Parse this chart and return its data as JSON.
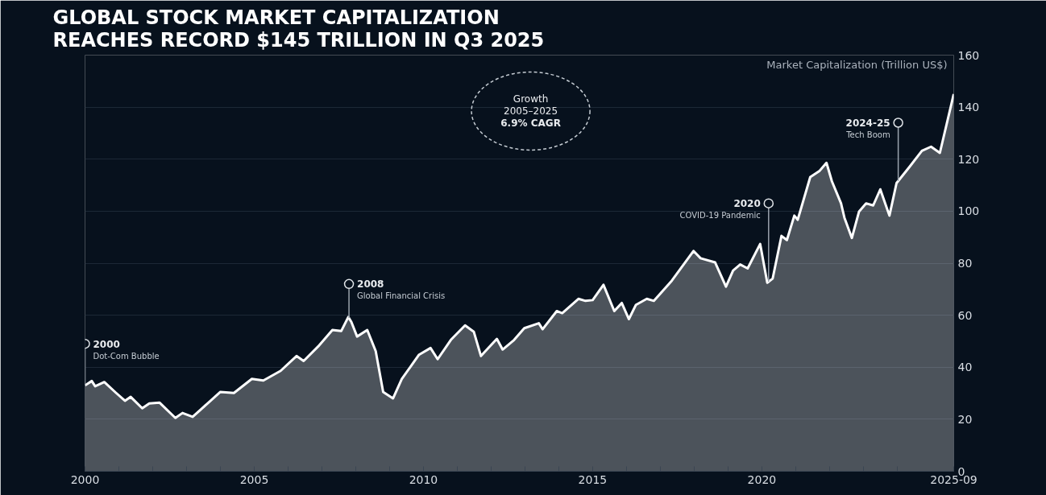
{
  "chart_data": {
    "type": "area",
    "title": "GLOBAL STOCK MARKET CAPITALIZATION\nREACHES RECORD $145 TRILLION IN Q3 2025",
    "ylabel": "Market Capitalization (Trillion US$)",
    "x": [
      2000.0,
      2000.2,
      2000.3,
      2000.57,
      2000.92,
      2001.18,
      2001.35,
      2001.69,
      2001.9,
      2002.2,
      2002.67,
      2002.88,
      2003.18,
      2003.4,
      2004.0,
      2004.4,
      2004.93,
      2005.27,
      2005.78,
      2006.25,
      2006.46,
      2006.89,
      2007.31,
      2007.57,
      2007.78,
      2007.87,
      2008.04,
      2008.34,
      2008.59,
      2008.81,
      2009.1,
      2009.36,
      2009.87,
      2010.21,
      2010.42,
      2010.81,
      2011.23,
      2011.49,
      2011.7,
      2011.92,
      2012.17,
      2012.34,
      2012.68,
      2012.98,
      2013.41,
      2013.52,
      2013.94,
      2014.1,
      2014.58,
      2014.79,
      2015.0,
      2015.32,
      2015.64,
      2015.86,
      2016.07,
      2016.28,
      2016.6,
      2016.81,
      2017.34,
      2017.98,
      2018.19,
      2018.62,
      2018.94,
      2019.15,
      2019.36,
      2019.58,
      2019.95,
      2020.16,
      2020.32,
      2020.58,
      2020.74,
      2020.96,
      2021.06,
      2021.43,
      2021.7,
      2021.91,
      2022.07,
      2022.34,
      2022.44,
      2022.66,
      2022.87,
      2023.08,
      2023.29,
      2023.5,
      2023.77,
      2023.98,
      2024.36,
      2024.73,
      2025.0,
      2025.26,
      2025.67
    ],
    "series": [
      {
        "color": "#ffffff",
        "values": [
          33.0,
          34.7,
          32.7,
          34.3,
          30.1,
          27.1,
          28.6,
          24.2,
          26.1,
          26.4,
          20.5,
          22.4,
          20.9,
          23.5,
          30.5,
          30.1,
          35.5,
          34.9,
          38.6,
          44.3,
          42.4,
          48.0,
          54.3,
          53.9,
          59.3,
          57.4,
          51.8,
          54.3,
          46.2,
          30.5,
          28.0,
          35.5,
          44.8,
          47.4,
          43.1,
          50.5,
          56.1,
          53.6,
          44.3,
          47.4,
          50.9,
          46.8,
          50.5,
          55.0,
          56.9,
          54.6,
          61.6,
          60.8,
          66.3,
          65.5,
          65.8,
          71.7,
          61.6,
          64.7,
          58.5,
          64.0,
          66.3,
          65.5,
          73.3,
          84.7,
          81.9,
          80.3,
          71.0,
          77.2,
          79.5,
          78.0,
          87.4,
          72.5,
          74.1,
          90.5,
          88.9,
          98.3,
          96.7,
          113.1,
          115.4,
          118.6,
          111.5,
          103.0,
          97.5,
          89.7,
          99.8,
          103.0,
          102.2,
          108.4,
          98.3,
          110.8,
          117.0,
          123.2,
          124.8,
          122.4,
          145.0
        ]
      }
    ],
    "xlim": [
      2000,
      2025.67
    ],
    "ylim": [
      0,
      160
    ],
    "xticks": [
      2000,
      {
        "value": 2001,
        "label": null
      },
      {
        "value": 2002,
        "label": null
      },
      {
        "value": 2003,
        "label": null
      },
      {
        "value": 2004,
        "label": null
      },
      2005,
      {
        "value": 2006,
        "label": null
      },
      {
        "value": 2007,
        "label": null
      },
      {
        "value": 2008,
        "label": null
      },
      {
        "value": 2009,
        "label": null
      },
      2010,
      {
        "value": 2011,
        "label": null
      },
      {
        "value": 2012,
        "label": null
      },
      {
        "value": 2013,
        "label": null
      },
      {
        "value": 2014,
        "label": null
      },
      2015,
      {
        "value": 2016,
        "label": null
      },
      {
        "value": 2017,
        "label": null
      },
      {
        "value": 2018,
        "label": null
      },
      {
        "value": 2019,
        "label": null
      },
      2020,
      {
        "value": 2021,
        "label": null
      },
      {
        "value": 2022,
        "label": null
      },
      {
        "value": 2023,
        "label": null
      },
      {
        "value": 2024,
        "label": null
      },
      {
        "value": 2025.67,
        "label": "2025-09"
      }
    ],
    "yticks": [
      0,
      20,
      40,
      60,
      80,
      100,
      120,
      140,
      160
    ],
    "grid": "y",
    "annotations": [
      {
        "text": "2000\nDot-Com Bubble",
        "x": 2000.0,
        "y": 49
      },
      {
        "text": "2008\nGlobal Financial Crisis",
        "x": 2007.8,
        "y": 72
      },
      {
        "text": "2020\nCOVID-19 Pandemic",
        "x": 2020.2,
        "y": 103
      },
      {
        "text": "2024-25\nTech Boom",
        "x": 2024.03,
        "y": 134
      },
      "Growth\n2005–2025\n6.9% CAGR"
    ]
  }
}
